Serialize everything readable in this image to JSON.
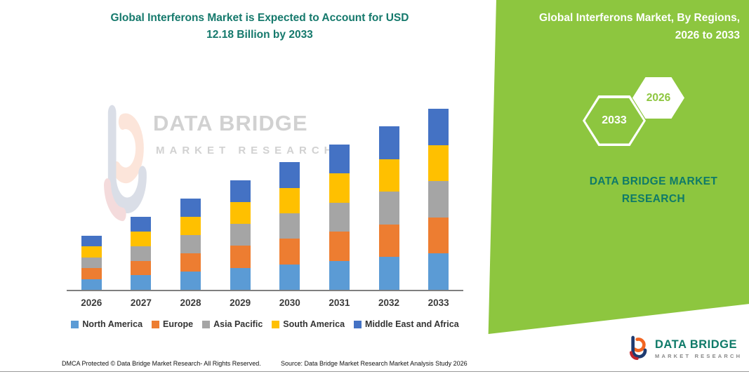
{
  "page": {
    "title_line1": "Global Interferons Market is Expected to Account for USD",
    "title_line2": "12.18 Billion by 2033"
  },
  "right_panel": {
    "heading_line1": "Global Interferons Market, By Regions,",
    "heading_line2": "2026 to 2033",
    "hex_back_label": "2033",
    "hex_front_label": "2026",
    "brand_line1": "DATA BRIDGE MARKET",
    "brand_line2": "RESEARCH",
    "panel_color": "#8DC63F",
    "brand_text_color": "#0E7A68"
  },
  "watermark": {
    "line1": "DATA BRIDGE",
    "line2": "MARKET RESEARCH"
  },
  "chart_data": {
    "type": "bar",
    "stacked": true,
    "title": "Global Interferons Market is Expected to Account for USD 12.18 Billion by 2033",
    "categories": [
      "2026",
      "2027",
      "2028",
      "2029",
      "2030",
      "2031",
      "2032",
      "2033"
    ],
    "series": [
      {
        "name": "North America",
        "color": "#5B9BD5",
        "values": [
          0.73,
          0.98,
          1.23,
          1.48,
          1.72,
          1.96,
          2.2,
          2.44
        ]
      },
      {
        "name": "Europe",
        "color": "#ED7D31",
        "values": [
          0.73,
          0.98,
          1.23,
          1.48,
          1.72,
          1.96,
          2.2,
          2.44
        ]
      },
      {
        "name": "Asia Pacific",
        "color": "#A5A5A5",
        "values": [
          0.73,
          0.98,
          1.23,
          1.48,
          1.72,
          1.96,
          2.2,
          2.44
        ]
      },
      {
        "name": "South America",
        "color": "#FFC000",
        "values": [
          0.73,
          0.98,
          1.23,
          1.48,
          1.72,
          1.96,
          2.2,
          2.44
        ]
      },
      {
        "name": "Middle East and Africa",
        "color": "#4472C4",
        "values": [
          0.73,
          0.98,
          1.23,
          1.48,
          1.72,
          1.96,
          2.2,
          2.44
        ]
      }
    ],
    "totals_usd_billion": [
      3.65,
      4.9,
      6.15,
      7.4,
      8.6,
      9.8,
      11.0,
      12.18
    ],
    "ylim": [
      0,
      13
    ],
    "ylabel": "",
    "xlabel": "",
    "grid": false,
    "legend_position": "bottom"
  },
  "footer": {
    "dmca": "DMCA Protected © Data Bridge Market Research-  All Rights Reserved.",
    "source": "Source: Data Bridge Market Research  Market Analysis Study 2026",
    "brand_name": "DATA BRIDGE",
    "brand_sub": "MARKET RESEARCH"
  }
}
